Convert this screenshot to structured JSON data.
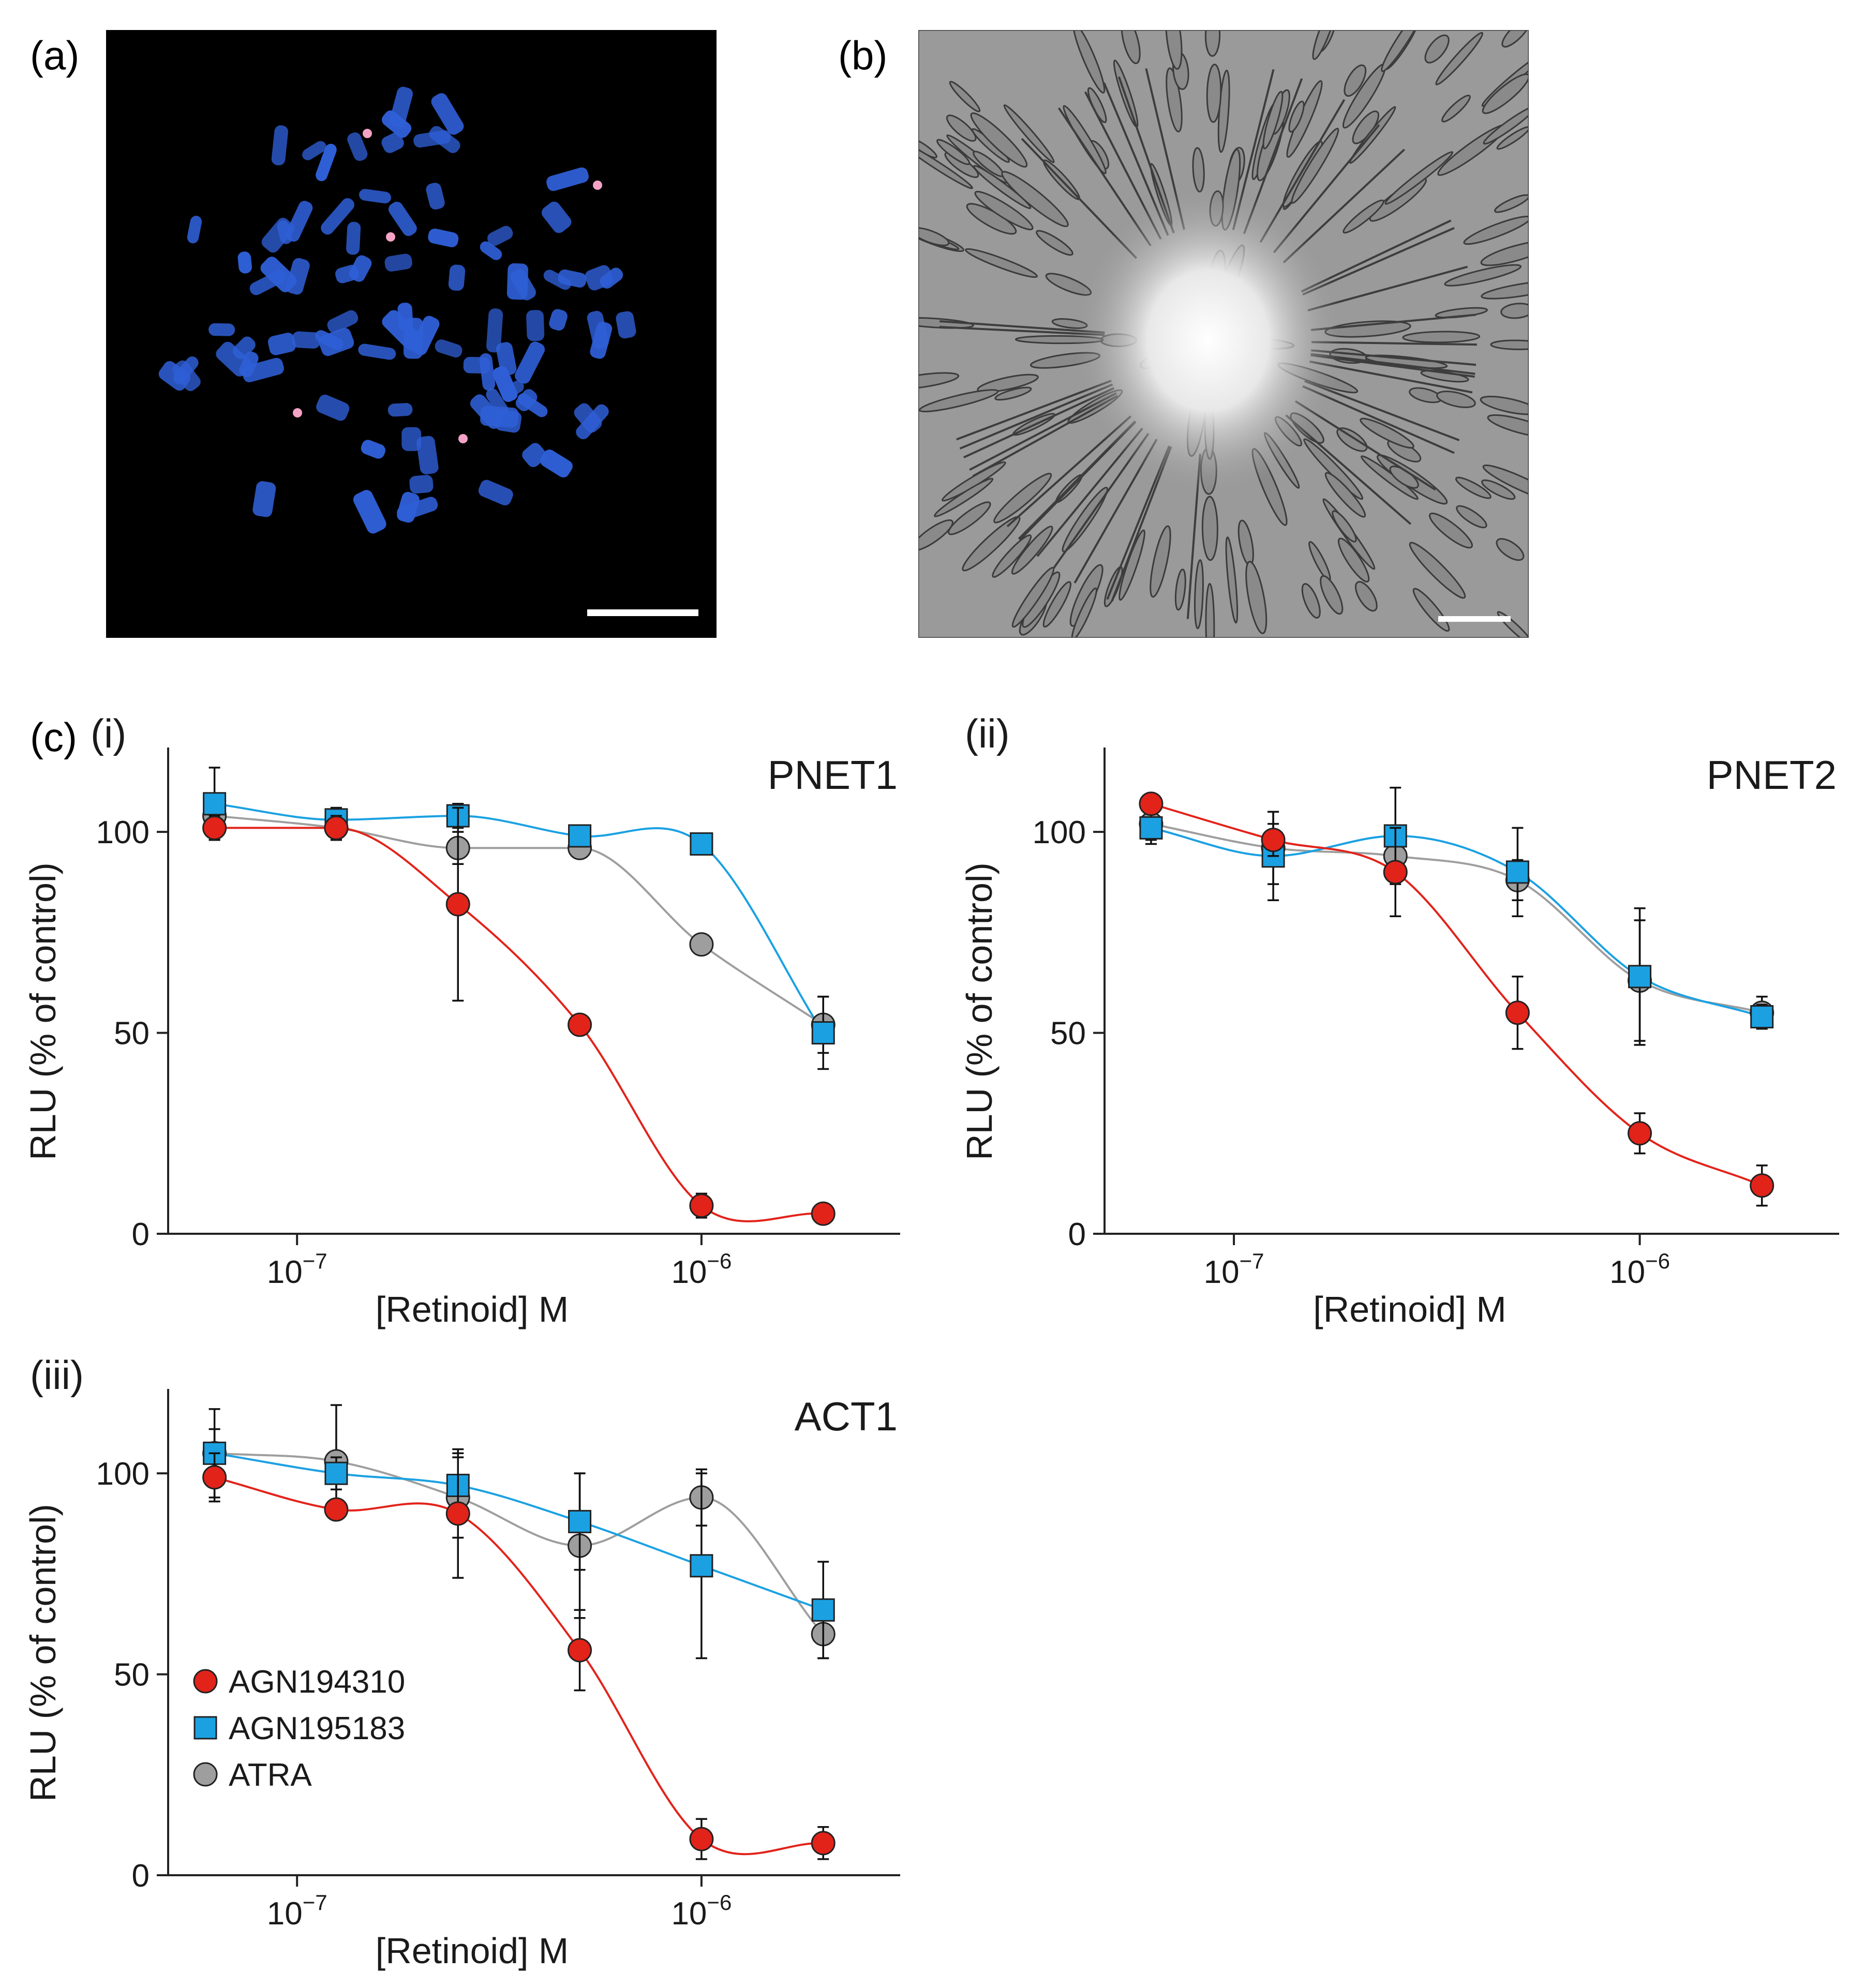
{
  "panels": {
    "a": {
      "label": "(a)"
    },
    "b": {
      "label": "(b)"
    },
    "c": {
      "label": "(c)"
    }
  },
  "colors": {
    "AGN194310": "#e2231a",
    "AGN195183": "#1ba1e2",
    "ATRA": "#9e9e9e",
    "chromosome": "#2f5fd6",
    "fish_signal": "#f4a3c6",
    "micrograph_bg": "#9a9a9a"
  },
  "chart_data": [
    {
      "panel": "(i)",
      "type": "line",
      "title": "PNET1",
      "xlabel": "[Retinoid] M",
      "ylabel": "RLU (% of control)",
      "xscale": "log",
      "xlim": [
        4.8e-08,
        3.1e-06
      ],
      "ylim": [
        0,
        121
      ],
      "yticks": [
        0,
        50,
        100
      ],
      "xticks": [
        {
          "value": 1e-07,
          "base": "10",
          "exp": "−7"
        },
        {
          "value": 1e-06,
          "base": "10",
          "exp": "−6"
        }
      ],
      "x": [
        6.25e-08,
        1.25e-07,
        2.5e-07,
        5e-07,
        1e-06,
        2e-06
      ],
      "series": [
        {
          "name": "AGN194310",
          "marker": "circle",
          "values": [
            101,
            101,
            82,
            52,
            7,
            5
          ],
          "errors": [
            3,
            3,
            24,
            0,
            3,
            0
          ]
        },
        {
          "name": "AGN195183",
          "marker": "square",
          "values": [
            107,
            103,
            104,
            99,
            97,
            50
          ],
          "errors": [
            9,
            3,
            3,
            0,
            0,
            9
          ]
        },
        {
          "name": "ATRA",
          "marker": "circle",
          "values": [
            104,
            101,
            96,
            96,
            72,
            52
          ],
          "errors": [
            3,
            3,
            4,
            0,
            0,
            7
          ]
        }
      ]
    },
    {
      "panel": "(ii)",
      "type": "line",
      "title": "PNET2",
      "xlabel": "[Retinoid] M",
      "ylabel": "RLU (% of control)",
      "xscale": "log",
      "xlim": [
        4.8e-08,
        3.1e-06
      ],
      "ylim": [
        0,
        121
      ],
      "yticks": [
        0,
        50,
        100
      ],
      "xticks": [
        {
          "value": 1e-07,
          "base": "10",
          "exp": "−7"
        },
        {
          "value": 1e-06,
          "base": "10",
          "exp": "−6"
        }
      ],
      "x": [
        6.25e-08,
        1.25e-07,
        2.5e-07,
        5e-07,
        1e-06,
        2e-06
      ],
      "series": [
        {
          "name": "AGN194310",
          "marker": "circle",
          "values": [
            107,
            98,
            90,
            55,
            25,
            12
          ],
          "errors": [
            0,
            4,
            11,
            9,
            5,
            5
          ]
        },
        {
          "name": "AGN195183",
          "marker": "square",
          "values": [
            101,
            94,
            99,
            90,
            64,
            54
          ],
          "errors": [
            4,
            11,
            12,
            11,
            17,
            3
          ]
        },
        {
          "name": "ATRA",
          "marker": "circle",
          "values": [
            102,
            96,
            94,
            88,
            63,
            55
          ],
          "errors": [
            4,
            9,
            4,
            5,
            15,
            4
          ]
        }
      ]
    },
    {
      "panel": "(iii)",
      "type": "line",
      "title": "ACT1",
      "xlabel": "[Retinoid] M",
      "ylabel": "RLU (% of control)",
      "xscale": "log",
      "xlim": [
        4.8e-08,
        3.1e-06
      ],
      "ylim": [
        0,
        121
      ],
      "yticks": [
        0,
        50,
        100
      ],
      "xticks": [
        {
          "value": 1e-07,
          "base": "10",
          "exp": "−7"
        },
        {
          "value": 1e-06,
          "base": "10",
          "exp": "−6"
        }
      ],
      "x": [
        6.25e-08,
        1.25e-07,
        2.5e-07,
        5e-07,
        1e-06,
        2e-06
      ],
      "legend": {
        "position": "bottom-left",
        "entries": [
          "AGN194310",
          "AGN195183",
          "ATRA"
        ]
      },
      "series": [
        {
          "name": "AGN194310",
          "marker": "circle",
          "values": [
            99,
            91,
            90,
            56,
            9,
            8
          ],
          "errors": [
            6,
            2,
            16,
            10,
            5,
            4
          ]
        },
        {
          "name": "AGN195183",
          "marker": "square",
          "values": [
            105,
            100,
            97,
            88,
            77,
            66
          ],
          "errors": [
            6,
            4,
            8,
            12,
            23,
            12
          ]
        },
        {
          "name": "ATRA",
          "marker": "circle",
          "values": [
            105,
            103,
            94,
            82,
            94,
            60
          ],
          "errors": [
            11,
            14,
            10,
            18,
            7,
            6
          ]
        }
      ]
    }
  ]
}
